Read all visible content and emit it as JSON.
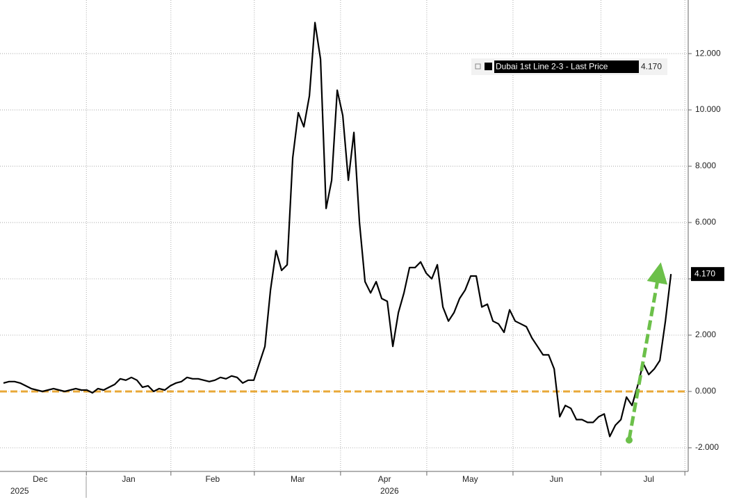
{
  "chart_data": {
    "type": "line",
    "series": [
      {
        "name": "Dubai 1st Line 2-3 - Last Price",
        "color": "#000000",
        "values": [
          0.3,
          0.35,
          0.35,
          0.3,
          0.2,
          0.1,
          0.05,
          0.0,
          0.05,
          0.1,
          0.05,
          0.0,
          0.05,
          0.1,
          0.05,
          0.05,
          -0.05,
          0.1,
          0.05,
          0.15,
          0.25,
          0.45,
          0.4,
          0.5,
          0.4,
          0.15,
          0.2,
          0.0,
          0.1,
          0.05,
          0.2,
          0.3,
          0.35,
          0.5,
          0.45,
          0.45,
          0.4,
          0.35,
          0.4,
          0.5,
          0.45,
          0.55,
          0.5,
          0.3,
          0.4,
          0.4,
          1.0,
          1.6,
          3.6,
          5.0,
          4.3,
          4.5,
          8.3,
          9.9,
          9.4,
          10.5,
          13.1,
          11.8,
          6.5,
          7.5,
          10.7,
          9.8,
          7.5,
          9.2,
          6.0,
          3.9,
          3.5,
          3.9,
          3.3,
          3.2,
          1.6,
          2.8,
          3.5,
          4.4,
          4.4,
          4.6,
          4.2,
          4.0,
          4.5,
          3.0,
          2.5,
          2.8,
          3.3,
          3.6,
          4.1,
          4.1,
          3.0,
          3.1,
          2.5,
          2.4,
          2.1,
          2.9,
          2.5,
          2.4,
          2.3,
          1.9,
          1.6,
          1.3,
          1.3,
          0.8,
          -0.9,
          -0.5,
          -0.6,
          -1.0,
          -1.0,
          -1.1,
          -1.1,
          -0.9,
          -0.8,
          -1.6,
          -1.2,
          -1.0,
          -0.2,
          -0.5,
          0.2,
          1.0,
          0.6,
          0.8,
          1.1,
          2.5,
          4.17
        ],
        "last_value_label": "4.170"
      }
    ],
    "xlim": [
      0,
      123.1
    ],
    "xticks": [
      {
        "value": 6.6,
        "label": "Dec"
      },
      {
        "value": 22.5,
        "label": "Jan"
      },
      {
        "value": 37.6,
        "label": "Feb"
      },
      {
        "value": 52.9,
        "label": "Mar"
      },
      {
        "value": 68.5,
        "label": "Apr"
      },
      {
        "value": 83.9,
        "label": "May"
      },
      {
        "value": 99.4,
        "label": "Jun"
      },
      {
        "value": 116,
        "label": "Jul"
      }
    ],
    "year_labels": [
      {
        "value": 2.9,
        "label": "2025"
      },
      {
        "value": 69.4,
        "label": "2026"
      }
    ],
    "xgrid": [
      14.9,
      30.1,
      45.1,
      60.6,
      76.1,
      91.6,
      107.4,
      122.5
    ],
    "ylim": [
      -2.84,
      13.78
    ],
    "yticks": [
      {
        "value": -2,
        "label": "-2.000"
      },
      {
        "value": 0,
        "label": "0.000"
      },
      {
        "value": 2,
        "label": "2.000"
      },
      {
        "value": 4,
        "label": "4.000"
      },
      {
        "value": 6,
        "label": "6.000"
      },
      {
        "value": 8,
        "label": "8.000"
      },
      {
        "value": 10,
        "label": "10.000"
      },
      {
        "value": 12,
        "label": "12.000"
      }
    ],
    "hline": {
      "value": 0,
      "color": "#e8a838"
    },
    "grid": true
  }
}
